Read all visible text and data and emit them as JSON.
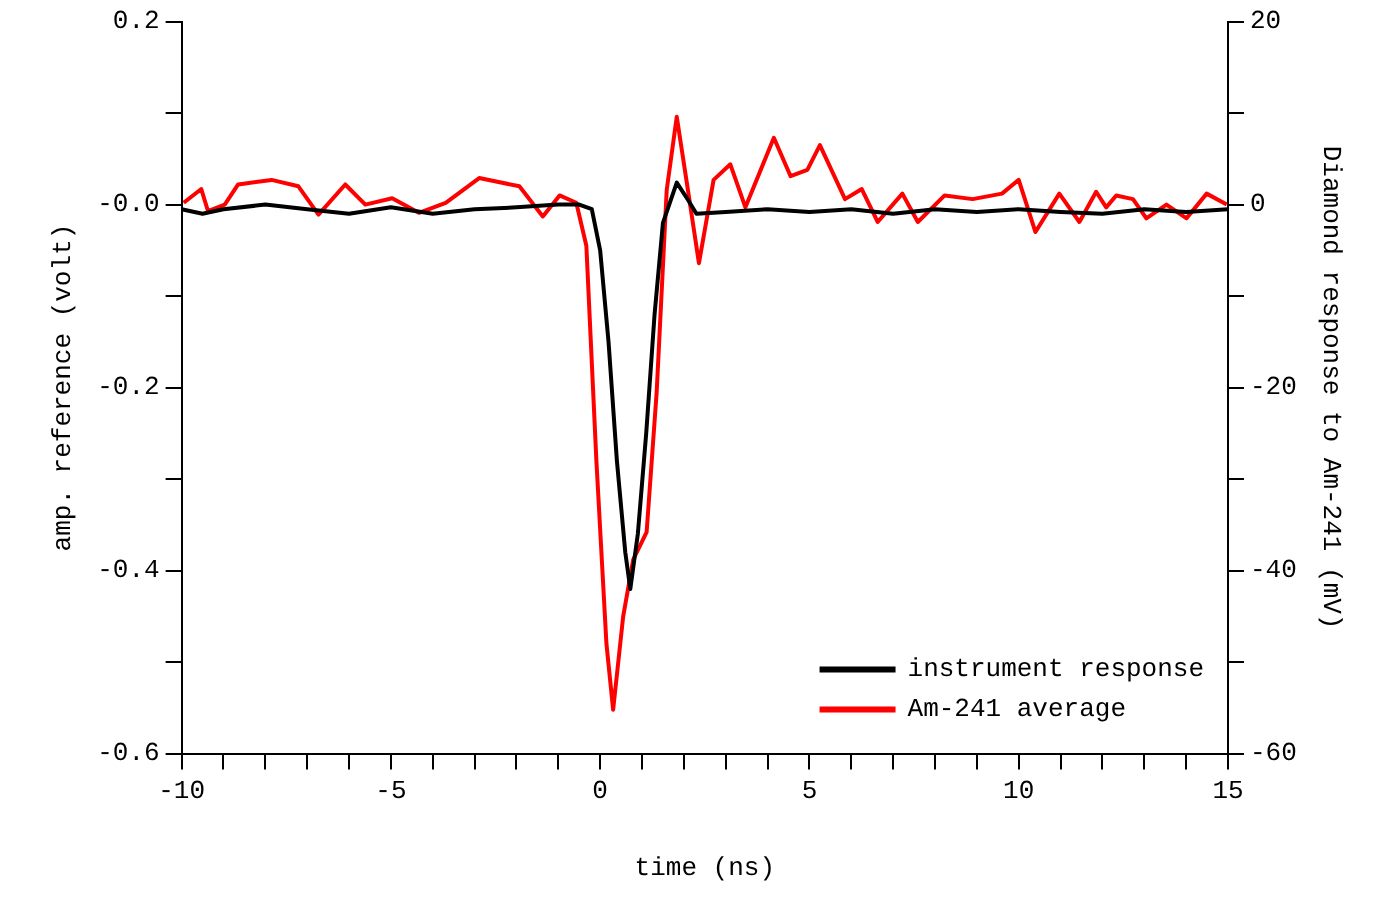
{
  "chart_data": {
    "type": "line",
    "xlabel": "time (ns)",
    "ylabel": "amp. reference (volt)",
    "y2label": "Diamond response to Am-241 (mV)",
    "xlim": [
      -10,
      15
    ],
    "xticks": [
      -10,
      {
        "value": -9,
        "label": null
      },
      {
        "value": -8,
        "label": null
      },
      {
        "value": -7,
        "label": null
      },
      {
        "value": -6,
        "label": null
      },
      -5,
      {
        "value": -4,
        "label": null
      },
      {
        "value": -3,
        "label": null
      },
      {
        "value": -2,
        "label": null
      },
      {
        "value": -1,
        "label": null
      },
      0,
      {
        "value": 1,
        "label": null
      },
      {
        "value": 2,
        "label": null
      },
      {
        "value": 3,
        "label": null
      },
      {
        "value": 4,
        "label": null
      },
      5,
      {
        "value": 6,
        "label": null
      },
      {
        "value": 7,
        "label": null
      },
      {
        "value": 8,
        "label": null
      },
      {
        "value": 9,
        "label": null
      },
      10,
      {
        "value": 11,
        "label": null
      },
      {
        "value": 12,
        "label": null
      },
      {
        "value": 13,
        "label": null
      },
      {
        "value": 14,
        "label": null
      },
      15
    ],
    "ylim": [
      -0.6,
      0.2
    ],
    "yticks": [
      -0.6,
      {
        "value": -0.5,
        "label": null
      },
      -0.4,
      {
        "value": -0.3,
        "label": null
      },
      -0.2,
      {
        "value": -0.1,
        "label": null
      },
      {
        "value": 0,
        "label": "-0.0"
      },
      {
        "value": 0.1,
        "label": null
      },
      0.2
    ],
    "y2lim": [
      -60,
      20
    ],
    "y2ticks": [
      -60,
      {
        "value": -50,
        "label": null
      },
      -40,
      {
        "value": -30,
        "label": null
      },
      -20,
      {
        "value": -10,
        "label": null
      },
      0,
      {
        "value": 10,
        "label": null
      },
      20
    ],
    "legend": "bottom right",
    "series": [
      {
        "name": "instrument response",
        "color": "#000000",
        "x": [
          -10,
          -9.5,
          -9,
          -8,
          -7,
          -6,
          -5,
          -4,
          -3,
          -2,
          -1,
          -0.5,
          -0.2,
          0,
          0.2,
          0.4,
          0.6,
          0.72,
          0.9,
          1.1,
          1.3,
          1.5,
          1.83,
          2.1,
          2.3,
          3,
          4,
          5,
          6,
          7,
          8,
          9,
          10,
          11,
          12,
          13,
          14,
          15
        ],
        "values": [
          -0.005,
          -0.01,
          -0.005,
          0,
          -0.005,
          -0.01,
          -0.003,
          -0.01,
          -0.005,
          -0.003,
          0,
          0,
          -0.005,
          -0.05,
          -0.15,
          -0.28,
          -0.38,
          -0.42,
          -0.36,
          -0.25,
          -0.12,
          -0.02,
          0.024,
          0.005,
          -0.01,
          -0.008,
          -0.005,
          -0.008,
          -0.005,
          -0.01,
          -0.005,
          -0.008,
          -0.005,
          -0.008,
          -0.01,
          -0.005,
          -0.008,
          -0.005
        ]
      },
      {
        "name": "Am-241 average",
        "color": "#ff0000",
        "axis": "y2",
        "x": [
          -9.95,
          -9.53,
          -9.37,
          -8.97,
          -8.65,
          -7.85,
          -7.21,
          -6.73,
          -6.09,
          -5.61,
          -4.97,
          -4.33,
          -3.69,
          -2.89,
          -1.93,
          -1.37,
          -0.97,
          -0.57,
          -0.33,
          -0.09,
          0.15,
          0.31,
          0.55,
          0.79,
          1.11,
          1.35,
          1.59,
          1.83,
          2.07,
          2.36,
          2.71,
          3.11,
          3.47,
          4.15,
          4.55,
          4.95,
          5.25,
          5.85,
          6.25,
          6.63,
          7.22,
          7.59,
          8.23,
          8.9,
          9.6,
          10.0,
          10.4,
          10.97,
          11.45,
          11.85,
          12.09,
          12.33,
          12.73,
          13.05,
          13.53,
          14.01,
          14.49,
          14.97
        ],
        "values": [
          0.2,
          1.7,
          -0.7,
          0,
          2.2,
          2.7,
          2,
          -1.1,
          2.2,
          0,
          0.7,
          -0.9,
          0.2,
          2.9,
          2,
          -1.3,
          1,
          0.2,
          -4.5,
          -28,
          -48,
          -55.2,
          -45,
          -38.8,
          -35.8,
          -20.5,
          1.6,
          9.6,
          2.4,
          -6.4,
          2.7,
          4.4,
          -0.3,
          7.3,
          3.1,
          3.8,
          6.5,
          0.6,
          1.7,
          -1.9,
          1.2,
          -1.9,
          1,
          0.6,
          1.2,
          2.7,
          -3,
          1.2,
          -1.9,
          1.4,
          -0.3,
          1,
          0.6,
          -1.5,
          0,
          -1.5,
          1.2,
          0
        ]
      }
    ]
  }
}
